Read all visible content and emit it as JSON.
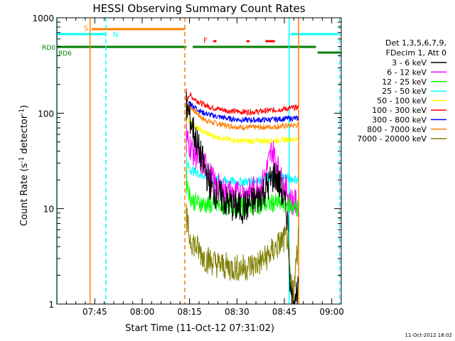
{
  "chart_data": {
    "type": "line",
    "title": "HESSI Observing Summary Count Rates",
    "xlabel": "Start Time (11-Oct-12 07:31:02)",
    "ylabel_main": "Count Rate (s",
    "ylabel_sup1": "-1",
    "ylabel_mid": " detector",
    "ylabel_sup2": "-1",
    "ylabel_end": ")",
    "ylog": true,
    "xlim": [
      31,
      121
    ],
    "ylim": [
      1,
      1000
    ],
    "x_ticks": [
      {
        "m": 43,
        "label": "07:45"
      },
      {
        "m": 58,
        "label": "08:00"
      },
      {
        "m": 73,
        "label": "08:15"
      },
      {
        "m": 88,
        "label": "08:30"
      },
      {
        "m": 103,
        "label": "08:45"
      },
      {
        "m": 118,
        "label": "09:00"
      }
    ],
    "y_ticks": [
      {
        "v": 1,
        "label": "1"
      },
      {
        "v": 10,
        "label": "10"
      },
      {
        "v": 100,
        "label": "100"
      },
      {
        "v": 1000,
        "label": "1000"
      }
    ],
    "timestamp": "11-Oct-2012 18:02",
    "legend": {
      "header1": "Det 1,3,5,6,7,9,",
      "header2": "FDecim 1, Att 0",
      "placement": "right"
    },
    "flags": [
      {
        "label": "S",
        "color": "#ff7f00",
        "start": 42,
        "end": 71.5
      },
      {
        "label": "N",
        "color": "#00ffff",
        "start": 31,
        "end": 46.5
      },
      {
        "label": "",
        "color": "#00ffff",
        "start": 105,
        "end": 120
      },
      {
        "label": "F",
        "color": "#ff0000",
        "segments": [
          [
            80.5,
            81.5
          ],
          [
            91,
            92
          ],
          [
            97,
            100
          ]
        ]
      },
      {
        "label": "RD0",
        "color": "#007f00",
        "segments": [
          [
            31,
            72
          ],
          [
            74,
            113
          ]
        ]
      },
      {
        "label": "RD6",
        "color": "#007f00",
        "segments": [
          [
            113.5,
            121
          ]
        ]
      }
    ],
    "vlines": [
      {
        "x": 31,
        "color": "#00ffff",
        "style": "solid"
      },
      {
        "x": 41.5,
        "color": "#ff7f00",
        "style": "solid"
      },
      {
        "x": 46.5,
        "color": "#00ffff",
        "style": "dash"
      },
      {
        "x": 71.5,
        "color": "#ff7f00",
        "style": "dash"
      },
      {
        "x": 104.5,
        "color": "#00ffff",
        "style": "solid"
      },
      {
        "x": 107.5,
        "color": "#ff7f00",
        "style": "solid"
      },
      {
        "x": 120.5,
        "color": "#00ffff",
        "style": "dash"
      }
    ],
    "series": [
      {
        "name": "3 - 6 keV",
        "color": "#000000",
        "noise": 0.18,
        "points": [
          [
            72,
            120
          ],
          [
            74,
            70
          ],
          [
            76,
            40
          ],
          [
            78,
            25
          ],
          [
            80,
            16
          ],
          [
            83,
            13
          ],
          [
            86,
            11
          ],
          [
            89,
            10
          ],
          [
            92,
            11
          ],
          [
            95,
            13
          ],
          [
            98,
            18
          ],
          [
            100,
            23
          ],
          [
            102,
            16
          ],
          [
            104,
            8
          ],
          [
            105,
            1.3
          ],
          [
            106,
            1.3
          ],
          [
            107.5,
            1.3
          ]
        ]
      },
      {
        "name": "6 - 12 keV",
        "color": "#ff00ff",
        "noise": 0.15,
        "points": [
          [
            72,
            55
          ],
          [
            74,
            40
          ],
          [
            76,
            32
          ],
          [
            78,
            28
          ],
          [
            81,
            18
          ],
          [
            84,
            15
          ],
          [
            88,
            14
          ],
          [
            92,
            15
          ],
          [
            96,
            18
          ],
          [
            98,
            30
          ],
          [
            99,
            42
          ],
          [
            100,
            35
          ],
          [
            102,
            20
          ],
          [
            104,
            15
          ],
          [
            105,
            12
          ],
          [
            107.5,
            11
          ]
        ]
      },
      {
        "name": "12 - 25 keV",
        "color": "#00ff00",
        "noise": 0.1,
        "points": [
          [
            72,
            20
          ],
          [
            73,
            14
          ],
          [
            74,
            12
          ],
          [
            78,
            11
          ],
          [
            84,
            10.5
          ],
          [
            90,
            10.5
          ],
          [
            96,
            11
          ],
          [
            100,
            11.5
          ],
          [
            104,
            11
          ],
          [
            107.5,
            10
          ]
        ]
      },
      {
        "name": "25 - 50 keV",
        "color": "#00ffff",
        "noise": 0.05,
        "points": [
          [
            72,
            30
          ],
          [
            73,
            26
          ],
          [
            75,
            24
          ],
          [
            78,
            22
          ],
          [
            82,
            20
          ],
          [
            88,
            19
          ],
          [
            94,
            19.5
          ],
          [
            98,
            21
          ],
          [
            102,
            22
          ],
          [
            104,
            21
          ],
          [
            107.5,
            20
          ]
        ]
      },
      {
        "name": "50 - 100 keV",
        "color": "#ffff00",
        "noise": 0.03,
        "points": [
          [
            72,
            95
          ],
          [
            74,
            75
          ],
          [
            77,
            65
          ],
          [
            80,
            58
          ],
          [
            85,
            53
          ],
          [
            90,
            51
          ],
          [
            95,
            51
          ],
          [
            100,
            52
          ],
          [
            104,
            53
          ],
          [
            107.5,
            54
          ]
        ]
      },
      {
        "name": "100 - 300 keV",
        "color": "#ff0000",
        "noise": 0.03,
        "points": [
          [
            72,
            130
          ],
          [
            73,
            160
          ],
          [
            74,
            145
          ],
          [
            77,
            125
          ],
          [
            80,
            115
          ],
          [
            85,
            106
          ],
          [
            90,
            103
          ],
          [
            95,
            104
          ],
          [
            100,
            108
          ],
          [
            104,
            112
          ],
          [
            107.5,
            115
          ]
        ]
      },
      {
        "name": "300 - 800 keV",
        "color": "#0000ff",
        "noise": 0.03,
        "points": [
          [
            72,
            110
          ],
          [
            73,
            130
          ],
          [
            74,
            120
          ],
          [
            77,
            102
          ],
          [
            80,
            95
          ],
          [
            85,
            88
          ],
          [
            90,
            85
          ],
          [
            95,
            85
          ],
          [
            100,
            86
          ],
          [
            104,
            88
          ],
          [
            107.5,
            88
          ]
        ]
      },
      {
        "name": "800 - 7000 keV",
        "color": "#ff7f00",
        "noise": 0.03,
        "points": [
          [
            72,
            100
          ],
          [
            73,
            120
          ],
          [
            74,
            110
          ],
          [
            77,
            88
          ],
          [
            80,
            80
          ],
          [
            85,
            74
          ],
          [
            90,
            71
          ],
          [
            95,
            71
          ],
          [
            100,
            72
          ],
          [
            104,
            74
          ],
          [
            107.5,
            75
          ]
        ]
      },
      {
        "name": "7000 - 20000 keV",
        "color": "#7f7f00",
        "noise": 0.15,
        "points": [
          [
            72,
            8
          ],
          [
            73,
            5
          ],
          [
            75,
            4
          ],
          [
            78,
            3
          ],
          [
            82,
            2.6
          ],
          [
            86,
            2.4
          ],
          [
            90,
            2.4
          ],
          [
            94,
            2.6
          ],
          [
            97,
            3
          ],
          [
            100,
            3.8
          ],
          [
            102,
            4.5
          ],
          [
            104,
            5
          ],
          [
            105,
            1.5
          ],
          [
            106,
            1.4
          ],
          [
            107.5,
            5.5
          ]
        ]
      }
    ]
  }
}
